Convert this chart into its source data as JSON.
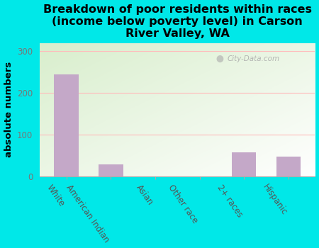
{
  "categories": [
    "White",
    "American Indian",
    "Asian",
    "Other race",
    "2+ races",
    "Hispanic"
  ],
  "values": [
    245,
    28,
    0,
    0,
    58,
    48
  ],
  "bar_color": "#c4a8c8",
  "title": "Breakdown of poor residents within races\n(income below poverty level) in Carson\nRiver Valley, WA",
  "ylabel": "absolute numbers",
  "ylim": [
    0,
    320
  ],
  "yticks": [
    0,
    100,
    200,
    300
  ],
  "background_color": "#00e8e8",
  "plot_bg_color1": "#d8eecc",
  "plot_bg_color2": "#ffffff",
  "watermark": "City-Data.com",
  "title_fontsize": 11.5,
  "ylabel_fontsize": 9.5,
  "tick_fontsize": 8.5,
  "ytick_color": "#777777",
  "xtick_color": "#555555"
}
